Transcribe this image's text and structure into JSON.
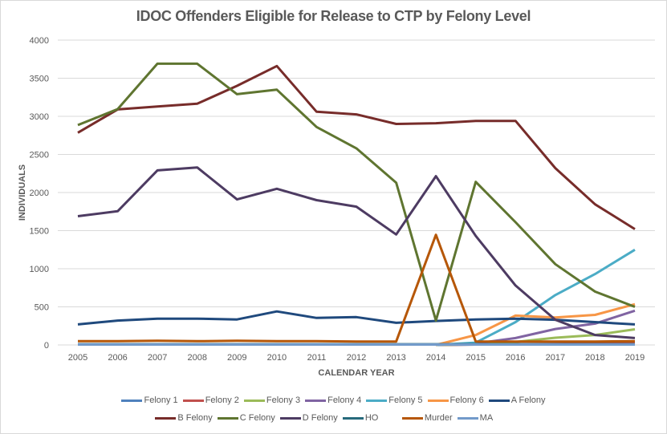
{
  "chart_data": {
    "type": "line",
    "title": "IDOC Offenders Eligible for Release to CTP by Felony Level",
    "xlabel": "CALENDAR YEAR",
    "ylabel": "INDIVIDUALS",
    "ylim": [
      0,
      4000
    ],
    "yticks": [
      0,
      500,
      1000,
      1500,
      2000,
      2500,
      3000,
      3500,
      4000
    ],
    "grid": true,
    "legend_position": "bottom",
    "x": [
      "2005",
      "2006",
      "2007",
      "2008",
      "2009",
      "2010",
      "2011",
      "2012",
      "2013",
      "2014",
      "2015",
      "2016",
      "2017",
      "2018",
      "2019"
    ],
    "series": [
      {
        "name": "Felony 1",
        "color": "#4f81bd",
        "values": [
          null,
          null,
          null,
          null,
          null,
          null,
          null,
          null,
          null,
          0,
          5,
          10,
          10,
          10,
          15
        ]
      },
      {
        "name": "Felony 2",
        "color": "#c0504d",
        "values": [
          null,
          null,
          null,
          null,
          null,
          null,
          null,
          null,
          null,
          0,
          5,
          10,
          15,
          20,
          25
        ]
      },
      {
        "name": "Felony 3",
        "color": "#9bbb59",
        "values": [
          null,
          null,
          null,
          null,
          null,
          null,
          null,
          null,
          null,
          0,
          10,
          40,
          95,
          130,
          205
        ]
      },
      {
        "name": "Felony 4",
        "color": "#8064a2",
        "values": [
          null,
          null,
          null,
          null,
          null,
          null,
          null,
          null,
          null,
          0,
          20,
          90,
          210,
          280,
          450
        ]
      },
      {
        "name": "Felony 5",
        "color": "#4bacc6",
        "values": [
          null,
          null,
          null,
          null,
          null,
          null,
          null,
          null,
          null,
          0,
          30,
          300,
          655,
          930,
          1250
        ]
      },
      {
        "name": "Felony 6",
        "color": "#f79646",
        "values": [
          null,
          null,
          null,
          null,
          null,
          null,
          null,
          null,
          null,
          0,
          130,
          385,
          360,
          395,
          535
        ]
      },
      {
        "name": "A Felony",
        "color": "#1f497d",
        "values": [
          270,
          320,
          345,
          345,
          335,
          440,
          355,
          365,
          290,
          315,
          335,
          345,
          330,
          300,
          270
        ]
      },
      {
        "name": "B Felony",
        "color": "#772c2a",
        "values": [
          2785,
          3090,
          3130,
          3165,
          3400,
          3660,
          3060,
          3025,
          2900,
          2910,
          2940,
          2940,
          2320,
          1845,
          1520
        ]
      },
      {
        "name": "C Felony",
        "color": "#5f7530",
        "values": [
          2885,
          3095,
          3690,
          3690,
          3290,
          3350,
          2860,
          2580,
          2130,
          320,
          2140,
          1610,
          1060,
          700,
          500
        ]
      },
      {
        "name": "D Felony",
        "color": "#4d3b62",
        "values": [
          1690,
          1755,
          2290,
          2330,
          1910,
          2050,
          1900,
          1815,
          1450,
          2215,
          1430,
          780,
          330,
          130,
          90
        ]
      },
      {
        "name": "HO",
        "color": "#276a7c",
        "values": [
          10,
          10,
          10,
          10,
          10,
          10,
          10,
          10,
          10,
          10,
          10,
          10,
          10,
          10,
          10
        ]
      },
      {
        "name": "Murder",
        "color": "#b65708",
        "values": [
          50,
          50,
          55,
          50,
          55,
          50,
          50,
          45,
          45,
          1445,
          45,
          45,
          45,
          45,
          50
        ]
      },
      {
        "name": "MA",
        "color": "#729aca",
        "values": [
          5,
          5,
          5,
          5,
          5,
          5,
          5,
          5,
          5,
          5,
          5,
          5,
          5,
          5,
          5
        ]
      }
    ]
  }
}
